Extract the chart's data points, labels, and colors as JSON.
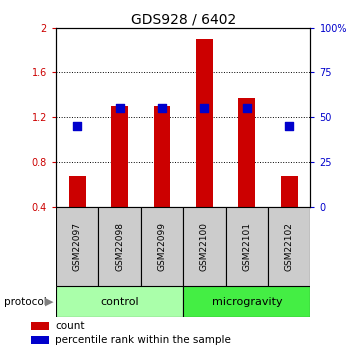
{
  "title": "GDS928 / 6402",
  "samples": [
    "GSM22097",
    "GSM22098",
    "GSM22099",
    "GSM22100",
    "GSM22101",
    "GSM22102"
  ],
  "count_values": [
    0.68,
    1.3,
    1.3,
    1.9,
    1.37,
    0.68
  ],
  "percentile_values": [
    45,
    55,
    55,
    55,
    55,
    45
  ],
  "ylim_left": [
    0.4,
    2.0
  ],
  "ylim_right": [
    0,
    100
  ],
  "yticks_left": [
    0.4,
    0.8,
    1.2,
    1.6,
    2.0
  ],
  "ytick_labels_left": [
    "0.4",
    "0.8",
    "1.2",
    "1.6",
    "2"
  ],
  "yticks_right": [
    0,
    25,
    50,
    75,
    100
  ],
  "ytick_labels_right": [
    "0",
    "25",
    "50",
    "75",
    "100%"
  ],
  "bar_color": "#cc0000",
  "dot_color": "#0000cc",
  "bar_width": 0.4,
  "dot_size": 30,
  "control_color": "#aaffaa",
  "microgravity_color": "#44ee44",
  "sample_box_color": "#cccccc",
  "legend_count_label": "count",
  "legend_pct_label": "percentile rank within the sample",
  "protocol_label": "protocol",
  "control_label": "control",
  "microgravity_label": "microgravity",
  "title_fontsize": 10,
  "tick_fontsize": 7,
  "sample_fontsize": 6.5,
  "proto_fontsize": 8,
  "legend_fontsize": 7.5
}
